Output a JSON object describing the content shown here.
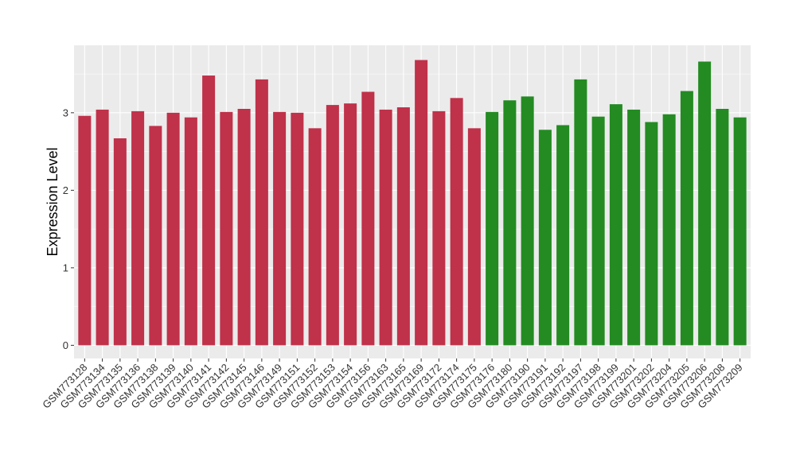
{
  "chart_data": {
    "type": "bar",
    "ylabel": "Expression Level",
    "xlabel": "",
    "ylim": [
      -0.17,
      3.87
    ],
    "yticks": [
      0,
      1,
      2,
      3
    ],
    "grid": true,
    "categories": [
      "GSM773128",
      "GSM773134",
      "GSM773135",
      "GSM773136",
      "GSM773138",
      "GSM773139",
      "GSM773140",
      "GSM773141",
      "GSM773142",
      "GSM773145",
      "GSM773146",
      "GSM773149",
      "GSM773151",
      "GSM773152",
      "GSM773153",
      "GSM773154",
      "GSM773156",
      "GSM773163",
      "GSM773165",
      "GSM773169",
      "GSM773172",
      "GSM773174",
      "GSM773175",
      "GSM773176",
      "GSM773180",
      "GSM773190",
      "GSM773191",
      "GSM773192",
      "GSM773197",
      "GSM773198",
      "GSM773199",
      "GSM773201",
      "GSM773202",
      "GSM773204",
      "GSM773205",
      "GSM773206",
      "GSM773208",
      "GSM773209"
    ],
    "values": [
      2.96,
      3.04,
      2.67,
      3.02,
      2.83,
      3.0,
      2.94,
      3.48,
      3.01,
      3.05,
      3.43,
      3.01,
      3.0,
      2.8,
      3.1,
      3.12,
      3.27,
      3.04,
      3.07,
      3.68,
      3.02,
      3.19,
      2.8,
      3.01,
      3.16,
      3.21,
      2.78,
      2.84,
      3.43,
      2.95,
      3.11,
      3.04,
      2.88,
      2.98,
      3.28,
      3.66,
      3.05,
      2.94
    ],
    "group_split_index": 23,
    "colors": {
      "group1": "#c0314a",
      "group2": "#238b22",
      "panel": "#ebebeb",
      "grid": "#ffffff"
    }
  }
}
